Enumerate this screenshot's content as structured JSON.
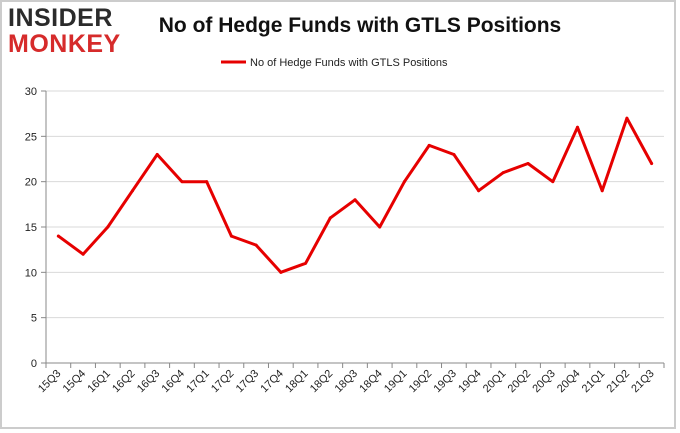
{
  "branding": {
    "logo_top": "INSIDER",
    "logo_bottom": "MONKEY"
  },
  "chart_data": {
    "type": "line",
    "title": "No of Hedge Funds with GTLS Positions",
    "xlabel": "",
    "ylabel": "",
    "categories": [
      "15Q3",
      "15Q4",
      "16Q1",
      "16Q2",
      "16Q3",
      "16Q4",
      "17Q1",
      "17Q2",
      "17Q3",
      "17Q4",
      "18Q1",
      "18Q2",
      "18Q3",
      "18Q4",
      "19Q1",
      "19Q2",
      "19Q3",
      "19Q4",
      "20Q1",
      "20Q2",
      "20Q3",
      "20Q4",
      "21Q1",
      "21Q2",
      "21Q3"
    ],
    "series": [
      {
        "name": "No of Hedge Funds with GTLS Positions",
        "color": "#e60000",
        "values": [
          14,
          12,
          15,
          19,
          23,
          20,
          20,
          14,
          13,
          10,
          11,
          16,
          18,
          15,
          20,
          24,
          23,
          19,
          21,
          22,
          20,
          26,
          19,
          27,
          22
        ]
      }
    ],
    "ylim": [
      0,
      30
    ],
    "yticks": [
      0,
      5,
      10,
      15,
      20,
      25,
      30
    ],
    "grid": true,
    "legend_position": "top-center"
  }
}
